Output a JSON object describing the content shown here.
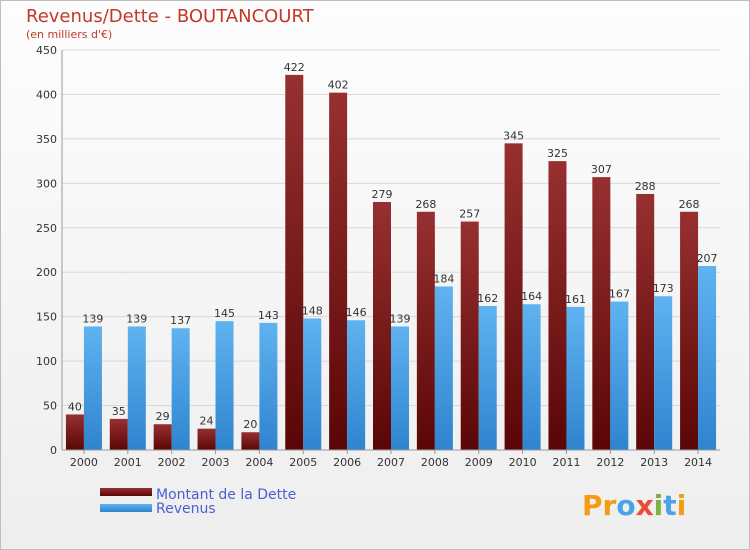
{
  "title": "Revenus/Dette - BOUTANCOURT",
  "subtitle": "(en milliers d'€)",
  "logo": "Proxiti",
  "colors": {
    "debt": "#7a1515",
    "revenue": "#4aa3e8"
  },
  "chart_data": {
    "type": "bar",
    "categories": [
      "2000",
      "2001",
      "2002",
      "2003",
      "2004",
      "2005",
      "2006",
      "2007",
      "2008",
      "2009",
      "2010",
      "2011",
      "2012",
      "2013",
      "2014"
    ],
    "series": [
      {
        "name": "Montant de la Dette",
        "values": [
          40,
          35,
          29,
          24,
          20,
          422,
          402,
          279,
          268,
          257,
          345,
          325,
          307,
          288,
          268
        ]
      },
      {
        "name": "Revenus",
        "values": [
          139,
          139,
          137,
          145,
          143,
          148,
          146,
          139,
          184,
          162,
          164,
          161,
          167,
          173,
          207
        ]
      }
    ],
    "ylim": [
      0,
      450
    ],
    "yticks": [
      0,
      50,
      100,
      150,
      200,
      250,
      300,
      350,
      400,
      450
    ],
    "grid": true,
    "legend": "bottom-left"
  }
}
